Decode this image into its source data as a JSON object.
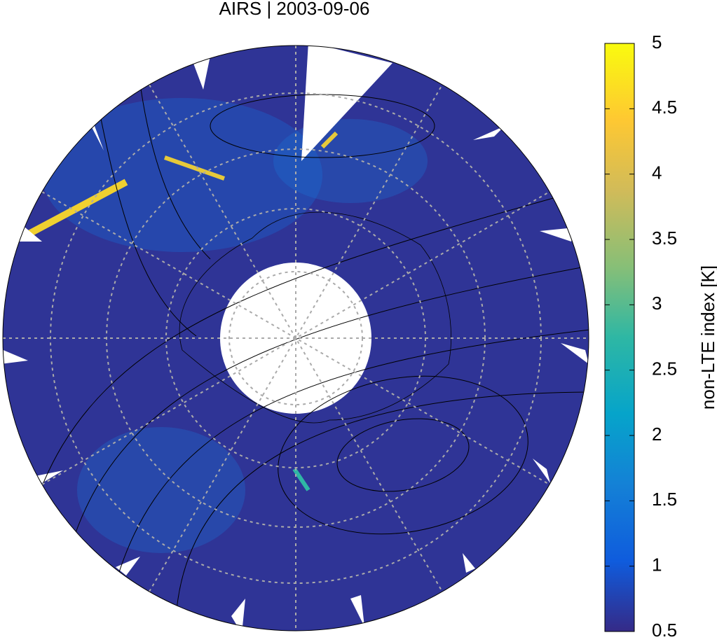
{
  "title": "AIRS | 2003-09-06",
  "colorbar": {
    "label": "non-LTE index [K]",
    "lim": [
      0.5,
      5
    ],
    "ticks": [
      0.5,
      1,
      1.5,
      2,
      2.5,
      3,
      3.5,
      4,
      4.5,
      5
    ]
  }
}
